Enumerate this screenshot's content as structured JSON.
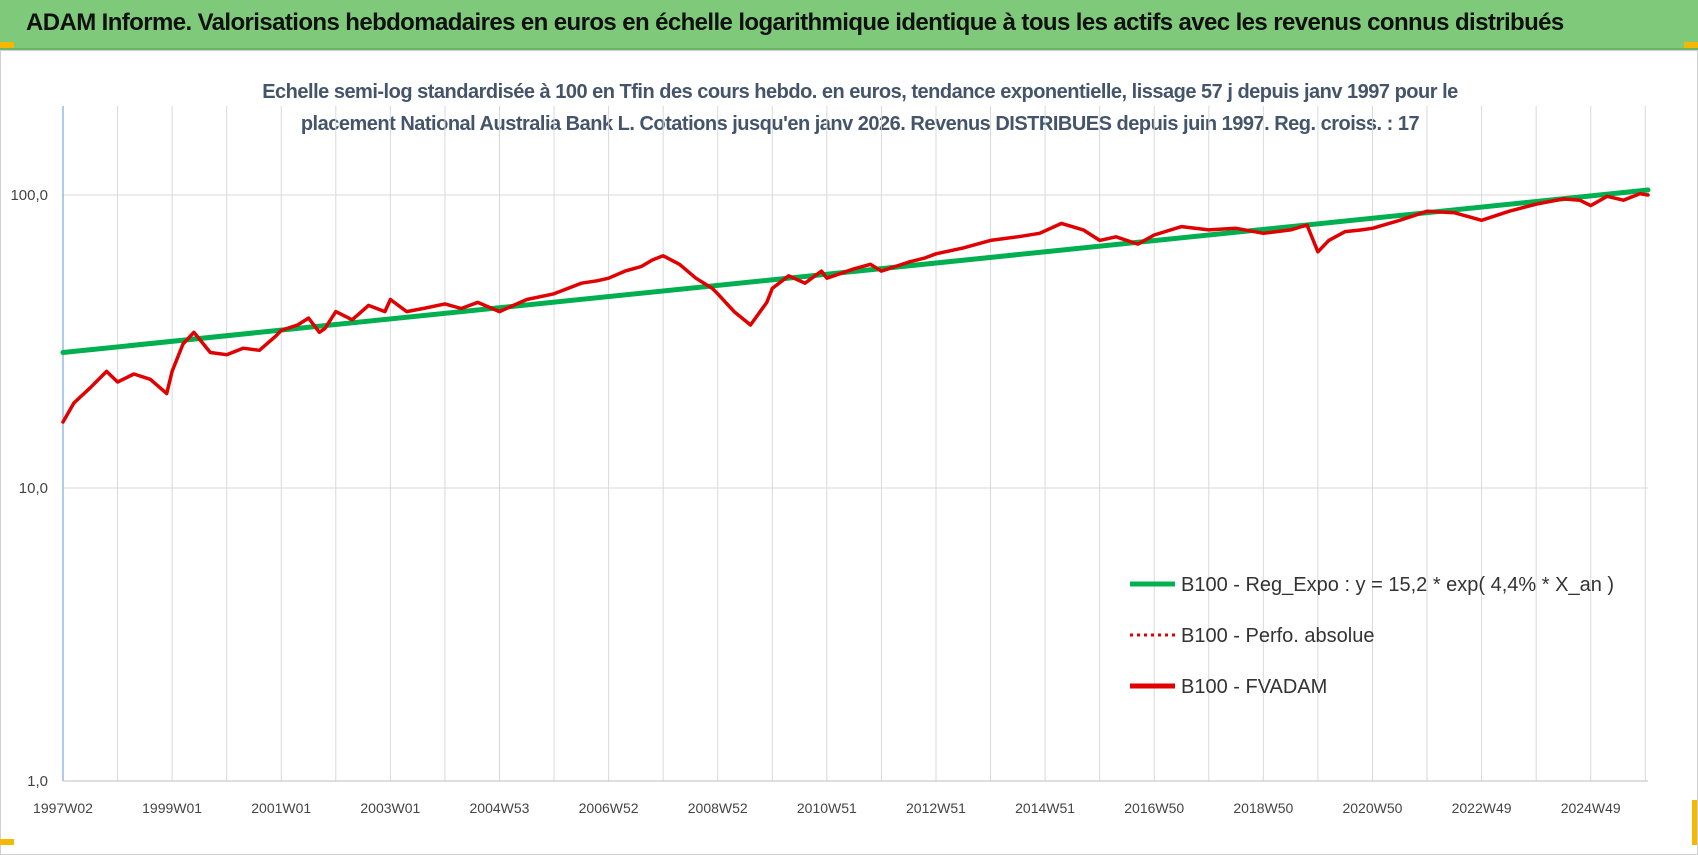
{
  "header": {
    "title": "ADAM Informe. Valorisations hebdomadaires en euros en échelle logarithmique identique à tous les actifs avec les revenus connus distribués"
  },
  "chart_data": {
    "type": "line",
    "title_line1": "Echelle semi-log standardisée à 100 en Tfin des cours hebdo. en euros, tendance exponentielle, lissage 57 j depuis janv 1997 pour le",
    "title_line2": "placement National Australia Bank L. Cotations jusqu'en janv 2026. Revenus DISTRIBUES depuis juin 1997. Reg. croiss. : 17",
    "y_scale": "log",
    "ylim": [
      1,
      200
    ],
    "y_ticks": [
      "1,0",
      "10,0",
      "100,0"
    ],
    "y_tick_values": [
      1,
      10,
      100
    ],
    "x_ticks": [
      "1997W02",
      "1999W01",
      "2001W01",
      "2003W01",
      "2004W53",
      "2006W52",
      "2008W52",
      "2010W51",
      "2012W51",
      "2014W51",
      "2016W50",
      "2018W50",
      "2020W50",
      "2022W49",
      "2024W49"
    ],
    "x_tick_years": [
      1997.0,
      1999.0,
      2001.0,
      2003.0,
      2005.0,
      2007.0,
      2009.0,
      2011.0,
      2013.0,
      2015.0,
      2017.0,
      2019.0,
      2021.0,
      2023.0,
      2025.0
    ],
    "xlim": [
      1997.0,
      2026.05
    ],
    "grid": true,
    "legend_position": "bottom-right",
    "series": [
      {
        "name": "B100 - Reg_Expo : y = 15,2 * exp( 4,4% *  X_an )",
        "color": "#00b050",
        "style": "solid",
        "x": [
          1997.0,
          2026.05
        ],
        "values": [
          29.0,
          104.0
        ]
      },
      {
        "name": "B100 - Perfo. absolue",
        "color": "#e00000",
        "style": "dotted",
        "x": [],
        "values": []
      },
      {
        "name": "B100 - FVADAM",
        "color": "#e00000",
        "style": "solid",
        "x": [
          1997.0,
          1997.2,
          1997.5,
          1997.8,
          1998.0,
          1998.3,
          1998.6,
          1998.9,
          1999.0,
          1999.2,
          1999.4,
          1999.7,
          2000.0,
          2000.3,
          2000.6,
          2000.9,
          2001.0,
          2001.3,
          2001.5,
          2001.7,
          2001.8,
          2002.0,
          2002.3,
          2002.6,
          2002.9,
          2003.0,
          2003.3,
          2003.6,
          2004.0,
          2004.3,
          2004.6,
          2005.0,
          2005.5,
          2006.0,
          2006.5,
          2006.8,
          2007.0,
          2007.3,
          2007.6,
          2007.8,
          2008.0,
          2008.3,
          2008.6,
          2008.9,
          2009.0,
          2009.3,
          2009.6,
          2009.9,
          2010.0,
          2010.3,
          2010.6,
          2010.9,
          2011.0,
          2011.5,
          2011.8,
          2012.0,
          2012.5,
          2012.8,
          2013.0,
          2013.5,
          2014.0,
          2014.5,
          2014.9,
          2015.3,
          2015.7,
          2016.0,
          2016.3,
          2016.7,
          2017.0,
          2017.5,
          2018.0,
          2018.5,
          2019.0,
          2019.5,
          2019.8,
          2020.0,
          2020.2,
          2020.5,
          2020.8,
          2021.0,
          2021.5,
          2022.0,
          2022.5,
          2023.0,
          2023.5,
          2024.0,
          2024.5,
          2024.8,
          2025.0,
          2025.3,
          2025.6,
          2025.9,
          2026.05
        ],
        "values": [
          16.8,
          19.5,
          22.0,
          25.0,
          23.0,
          24.5,
          23.5,
          21.0,
          25.0,
          31.0,
          34.0,
          29.0,
          28.5,
          30.0,
          29.5,
          33.0,
          34.5,
          36.0,
          38.0,
          34.0,
          35.0,
          40.0,
          37.5,
          42.0,
          40.0,
          44.0,
          40.0,
          41.0,
          42.5,
          41.0,
          43.0,
          40.0,
          44.0,
          46.0,
          50.0,
          51.0,
          52.0,
          55.0,
          57.0,
          60.0,
          62.0,
          58.0,
          52.0,
          48.0,
          46.0,
          40.0,
          36.0,
          43.0,
          48.0,
          53.0,
          50.0,
          55.0,
          52.0,
          56.0,
          58.0,
          55.0,
          59.0,
          61.0,
          63.0,
          66.0,
          70.0,
          72.0,
          74.0,
          80.0,
          76.0,
          70.0,
          72.0,
          68.0,
          73.0,
          78.0,
          76.0,
          77.0,
          74.0,
          76.0,
          79.0,
          64.0,
          70.0,
          75.0,
          76.0,
          77.0,
          82.0,
          88.0,
          87.0,
          82.0,
          88.0,
          93.0,
          97.0,
          96.0,
          92.0,
          99.0,
          96.0,
          101.0,
          100.0
        ]
      }
    ]
  }
}
